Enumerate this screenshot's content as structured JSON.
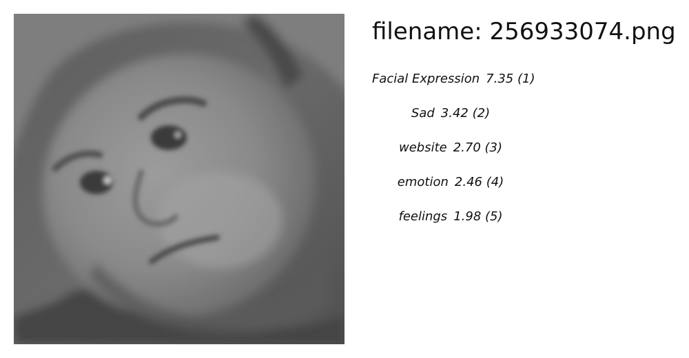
{
  "header": {
    "title_prefix": "filename:",
    "filename": "256933074.png"
  },
  "labels": [
    {
      "label": "Facial Expression",
      "score": "7.35",
      "rank": "1"
    },
    {
      "label": "Sad",
      "score": "3.42",
      "rank": "2"
    },
    {
      "label": "website",
      "score": "2.70",
      "rank": "3"
    },
    {
      "label": "emotion",
      "score": "2.46",
      "rank": "4"
    },
    {
      "label": "feelings",
      "score": "1.98",
      "rank": "5"
    }
  ]
}
